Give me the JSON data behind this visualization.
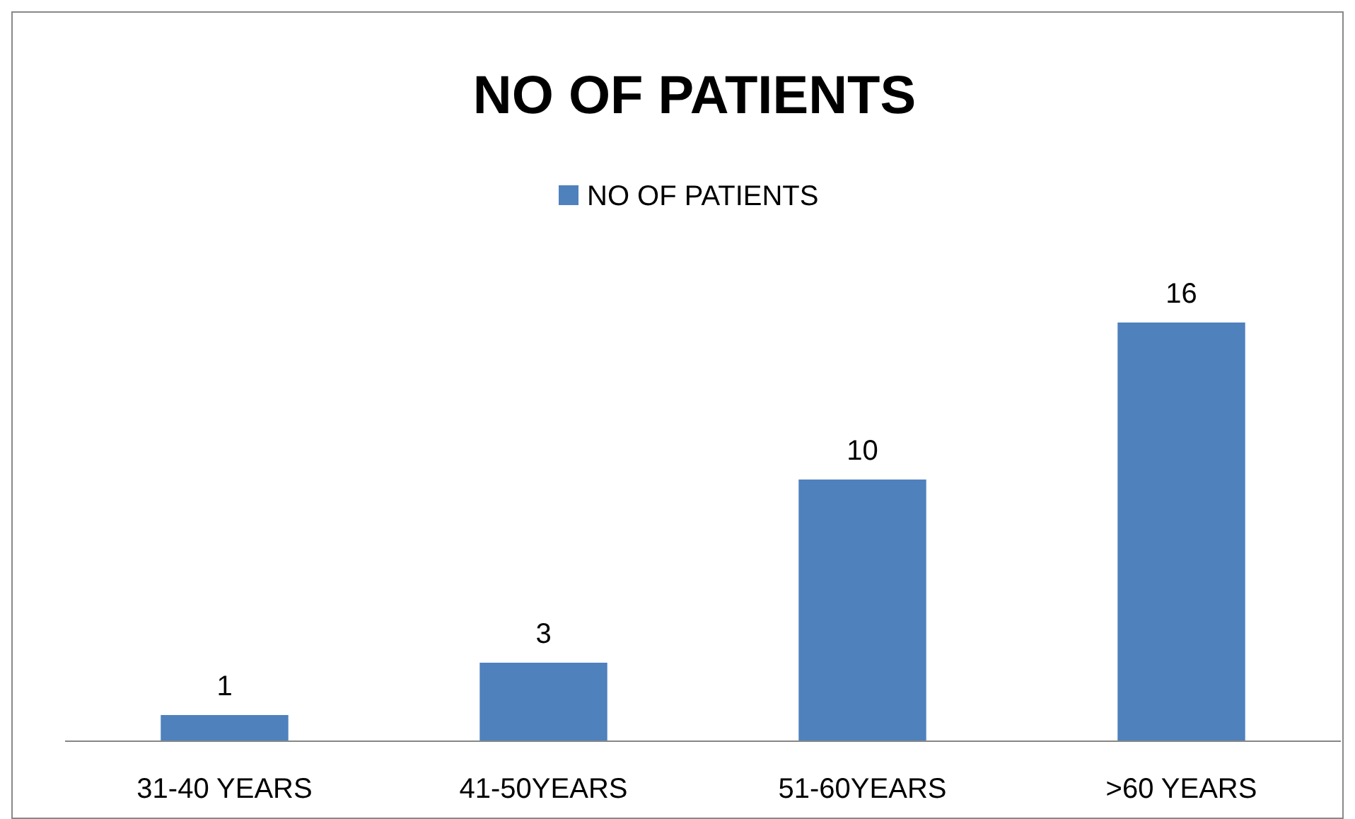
{
  "chart_data": {
    "type": "bar",
    "title": "NO OF PATIENTS",
    "categories": [
      "31-40 YEARS",
      "41-50YEARS",
      "51-60YEARS",
      ">60 YEARS"
    ],
    "series": [
      {
        "name": "NO OF PATIENTS",
        "color": "#4f81bd",
        "values": [
          1,
          3,
          10,
          16
        ]
      }
    ],
    "tick_labels": "x",
    "data_labels": true,
    "legend": "top"
  }
}
